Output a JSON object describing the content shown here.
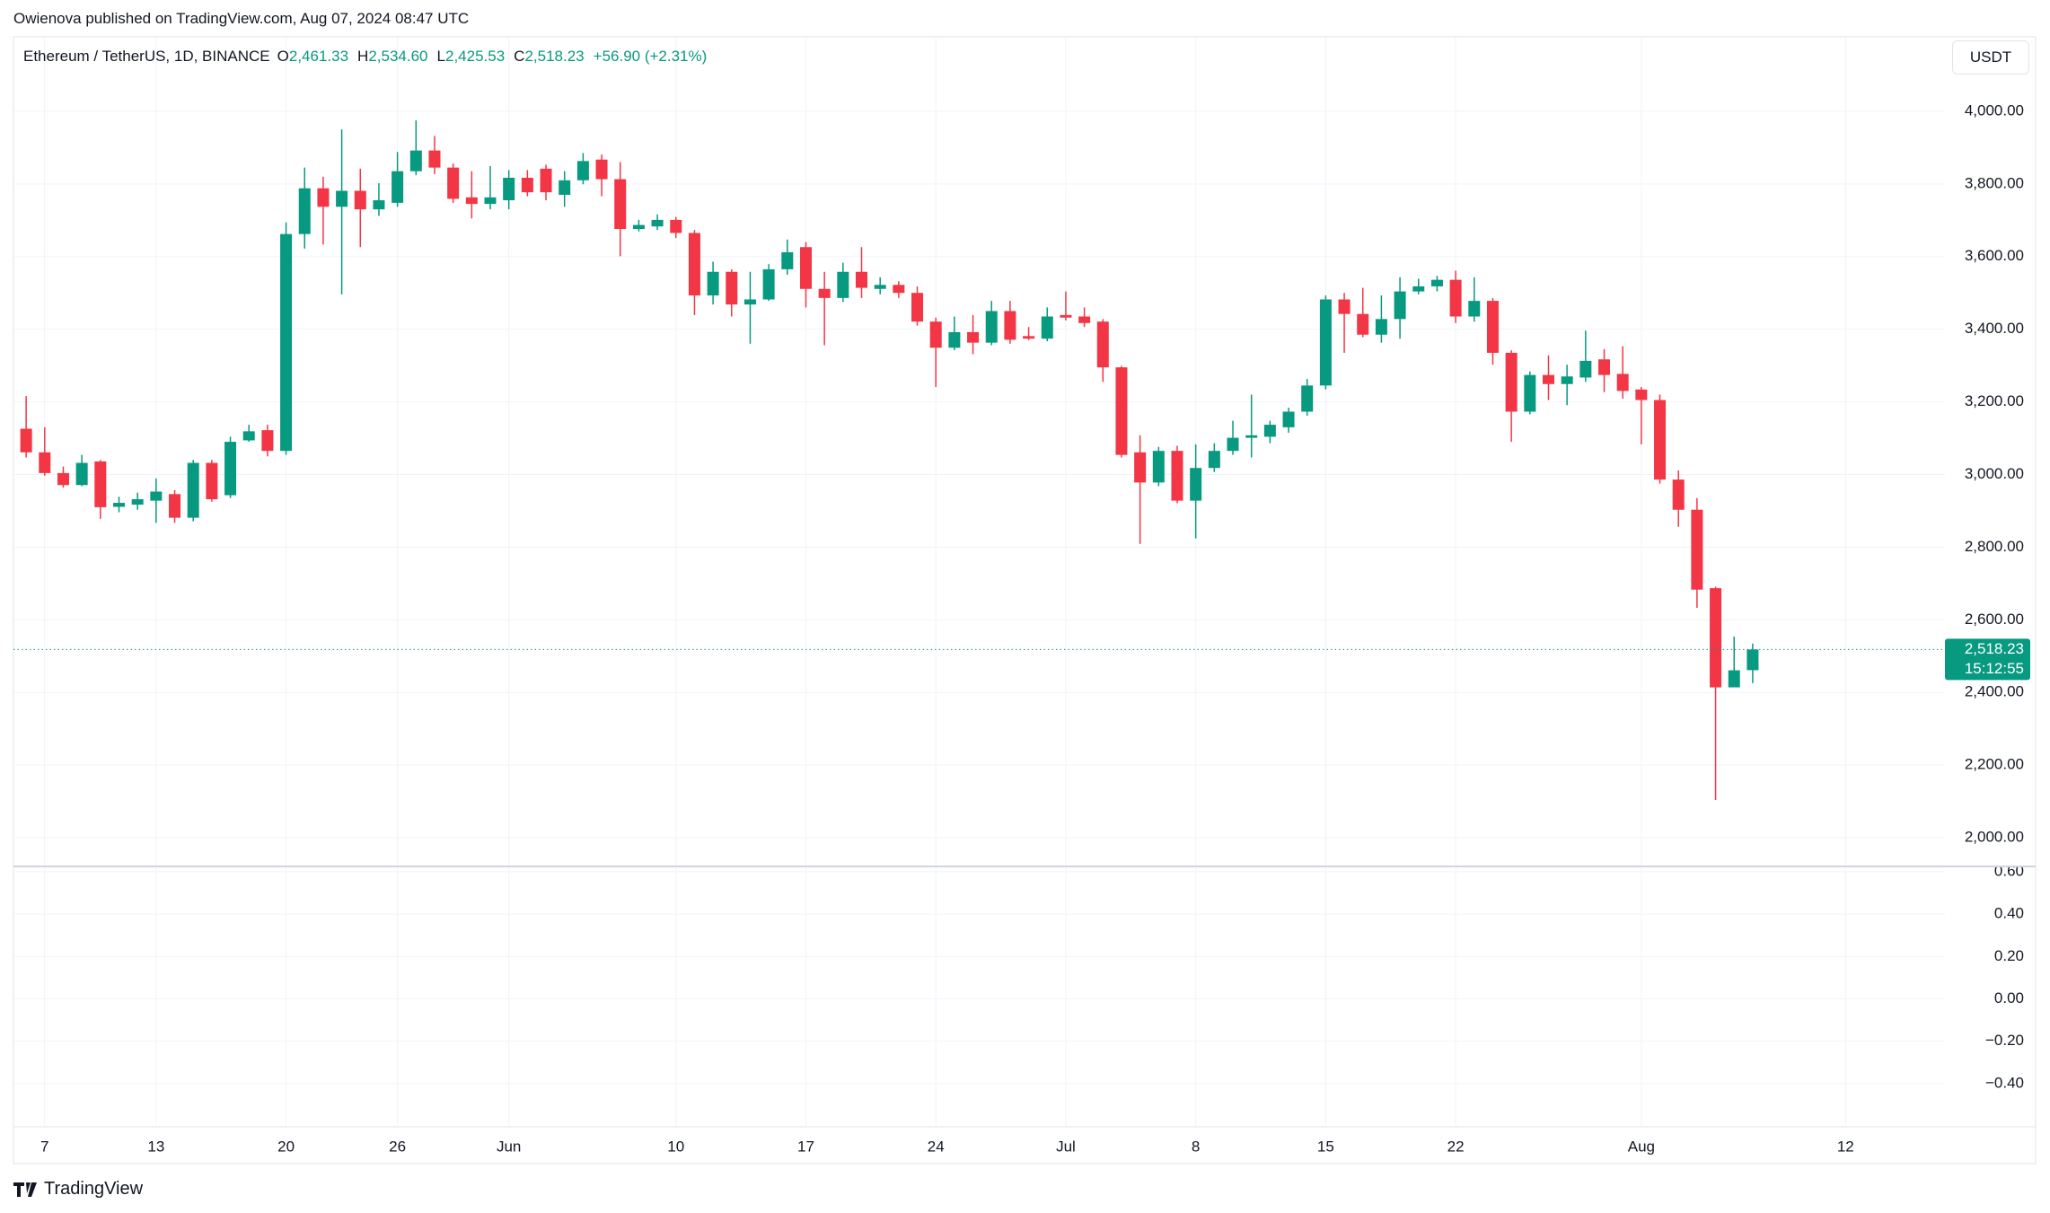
{
  "header": "Owienova published on TradingView.com, Aug 07, 2024 08:47 UTC",
  "footer": "TradingView",
  "chart_data": [
    {
      "type": "candlestick",
      "title": "Ethereum / TetherUS, 1D, BINANCE",
      "ohlc_legend": [
        {
          "label": "O",
          "value": "2,461.33"
        },
        {
          "label": "H",
          "value": "2,534.60"
        },
        {
          "label": "L",
          "value": "2,425.53"
        },
        {
          "label": "C",
          "value": "2,518.23"
        }
      ],
      "change": "+56.90 (+2.31%)",
      "currency": "USDT",
      "last_price_label": "2,518.23",
      "countdown": "15:12:55",
      "up_color": "#089981",
      "down_color": "#f23645",
      "categories": [
        null,
        "7",
        null,
        null,
        null,
        null,
        null,
        "13",
        null,
        null,
        null,
        null,
        null,
        null,
        "20",
        null,
        null,
        null,
        null,
        null,
        "26",
        null,
        null,
        null,
        null,
        null,
        "Jun",
        null,
        null,
        null,
        null,
        null,
        null,
        null,
        null,
        "10",
        null,
        null,
        null,
        null,
        null,
        null,
        "17",
        null,
        null,
        null,
        null,
        null,
        null,
        "24",
        null,
        null,
        null,
        null,
        null,
        null,
        "Jul",
        null,
        null,
        null,
        null,
        null,
        null,
        "8",
        null,
        null,
        null,
        null,
        null,
        null,
        "15",
        null,
        null,
        null,
        null,
        null,
        null,
        "22",
        null,
        null,
        null,
        null,
        null,
        null,
        null,
        null,
        null,
        "Aug",
        null,
        null,
        null,
        null,
        null,
        null,
        null,
        null,
        null,
        null,
        "12"
      ],
      "open": [
        3126,
        3061,
        3004,
        2971,
        3036,
        2911,
        2917,
        2928,
        2946,
        2881,
        3032,
        2943,
        3094,
        3122,
        3065,
        3662,
        3788,
        3737,
        3781,
        3730,
        3748,
        3835,
        3892,
        3845,
        3763,
        3745,
        3755,
        3817,
        3842,
        3770,
        3810,
        3867,
        3813,
        3676,
        3683,
        3701,
        3665,
        3493,
        3558,
        3468,
        3482,
        3565,
        3626,
        3511,
        3486,
        3558,
        3511,
        3522,
        3500,
        3421,
        3349,
        3392,
        3363,
        3450,
        3381,
        3374,
        3439,
        3435,
        3421,
        3295,
        3061,
        2978,
        3065,
        2928,
        3018,
        3065,
        3101,
        3104,
        3130,
        3173,
        3245,
        3482,
        3442,
        3385,
        3428,
        3504,
        3518,
        3536,
        3435,
        3478,
        3335,
        3173,
        3274,
        3249,
        3267,
        3317,
        3277,
        3234,
        3205,
        2986,
        2903,
        2687,
        2414,
        2461.33,
        null,
        null,
        null,
        null,
        null
      ],
      "high": [
        3216,
        3130,
        3022,
        3054,
        3040,
        2939,
        2950,
        2989,
        2957,
        3040,
        3040,
        3104,
        3137,
        3137,
        3694,
        3845,
        3820,
        3950,
        3842,
        3802,
        3888,
        3975,
        3932,
        3856,
        3835,
        3849,
        3838,
        3838,
        3853,
        3835,
        3885,
        3881,
        3860,
        3701,
        3716,
        3709,
        3673,
        3586,
        3565,
        3558,
        3579,
        3647,
        3640,
        3558,
        3583,
        3626,
        3543,
        3532,
        3518,
        3432,
        3435,
        3439,
        3478,
        3478,
        3406,
        3460,
        3504,
        3460,
        3428,
        3299,
        3108,
        3076,
        3079,
        3083,
        3086,
        3148,
        3220,
        3148,
        3184,
        3263,
        3493,
        3500,
        3514,
        3493,
        3543,
        3539,
        3547,
        3561,
        3543,
        3486,
        3342,
        3284,
        3328,
        3302,
        3396,
        3345,
        3353,
        3241,
        3220,
        3011,
        2935,
        2691,
        2554,
        2534.6,
        null,
        null,
        null,
        null,
        null
      ],
      "low": [
        3047,
        2997,
        2964,
        2968,
        2878,
        2896,
        2903,
        2867,
        2867,
        2871,
        2925,
        2935,
        3090,
        3050,
        3054,
        3622,
        3633,
        3496,
        3626,
        3712,
        3737,
        3824,
        3827,
        3748,
        3705,
        3730,
        3730,
        3766,
        3755,
        3737,
        3799,
        3766,
        3601,
        3669,
        3673,
        3651,
        3439,
        3468,
        3435,
        3360,
        3478,
        3550,
        3460,
        3356,
        3475,
        3486,
        3496,
        3486,
        3410,
        3241,
        3342,
        3331,
        3356,
        3360,
        3370,
        3367,
        3424,
        3406,
        3255,
        3047,
        2809,
        2968,
        2921,
        2824,
        3007,
        3054,
        3047,
        3086,
        3115,
        3162,
        3234,
        3335,
        3378,
        3363,
        3374,
        3496,
        3504,
        3417,
        3421,
        3302,
        3090,
        3166,
        3205,
        3191,
        3255,
        3227,
        3209,
        3083,
        2975,
        2856,
        2633,
        2104,
        2421,
        2425.53,
        null,
        null,
        null,
        null,
        null
      ],
      "close": [
        3061,
        3004,
        2971,
        3032,
        2910,
        2922,
        2932,
        2953,
        2881,
        3032,
        2932,
        3090,
        3119,
        3065,
        3662,
        3788,
        3737,
        3781,
        3730,
        3755,
        3835,
        3892,
        3845,
        3759,
        3745,
        3763,
        3817,
        3777,
        3777,
        3810,
        3863,
        3813,
        3676,
        3687,
        3701,
        3665,
        3493,
        3558,
        3468,
        3482,
        3565,
        3612,
        3511,
        3486,
        3558,
        3514,
        3522,
        3500,
        3421,
        3349,
        3392,
        3363,
        3450,
        3371,
        3374,
        3435,
        3432,
        3417,
        3295,
        3054,
        2978,
        3065,
        2928,
        3018,
        3065,
        3101,
        3108,
        3137,
        3173,
        3245,
        3482,
        3442,
        3385,
        3428,
        3504,
        3518,
        3536,
        3435,
        3478,
        3335,
        3173,
        3274,
        3249,
        3270,
        3313,
        3274,
        3230,
        3205,
        2986,
        2903,
        2683,
        2414,
        2461,
        2518.23,
        null,
        null,
        null,
        null,
        null
      ],
      "ylim": [
        1921,
        4205
      ],
      "yticks": [
        {
          "value": 2000,
          "label": "2,000.00"
        },
        {
          "value": 2200,
          "label": "2,200.00"
        },
        {
          "value": 2400,
          "label": "2,400.00"
        },
        {
          "value": 2600,
          "label": "2,600.00"
        },
        {
          "value": 2800,
          "label": "2,800.00"
        },
        {
          "value": 3000,
          "label": "3,000.00"
        },
        {
          "value": 3200,
          "label": "3,200.00"
        },
        {
          "value": 3400,
          "label": "3,400.00"
        },
        {
          "value": 3600,
          "label": "3,600.00"
        },
        {
          "value": 3800,
          "label": "3,800.00"
        },
        {
          "value": 4000,
          "label": "4,000.00"
        }
      ],
      "grid": true
    },
    {
      "type": "indicator",
      "ylim": [
        -0.604,
        0.625
      ],
      "yticks": [
        {
          "value": 0.6,
          "label": "0.60"
        },
        {
          "value": 0.4,
          "label": "0.40"
        },
        {
          "value": 0.2,
          "label": "0.20"
        },
        {
          "value": 0,
          "label": "0.00"
        },
        {
          "value": -0.2,
          "label": "−0.20"
        },
        {
          "value": -0.4,
          "label": "−0.40"
        }
      ],
      "grid": true
    }
  ]
}
